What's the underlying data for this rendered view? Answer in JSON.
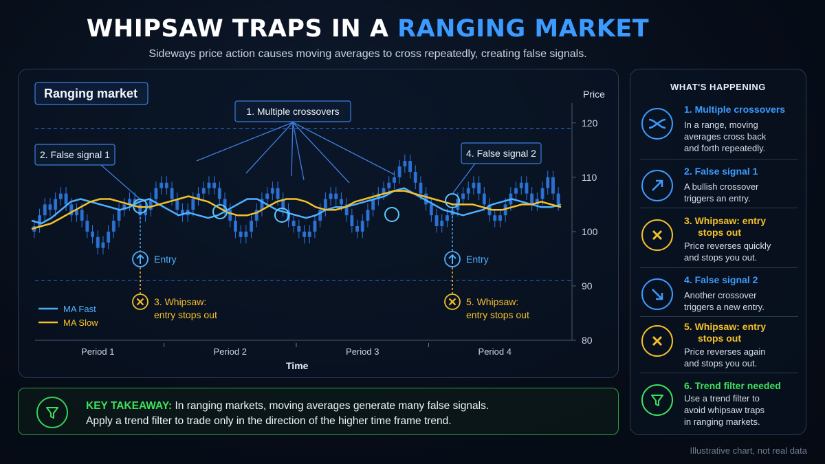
{
  "header": {
    "title_part1": "WHIPSAW TRAPS IN A ",
    "title_part2": "RANGING MARKET",
    "subtitle": "Sideways price action causes moving averages to cross repeatedly, creating false signals."
  },
  "colors": {
    "accent": "#3d9bff",
    "ma_fast": "#4fb0ff",
    "ma_slow": "#f5c12a",
    "candle": "#2e78e0",
    "whipsaw": "#f5c12a",
    "takeaway": "#3ee05d",
    "range_line": "#2d5fc4"
  },
  "chart_data": {
    "type": "line",
    "title": "Ranging market",
    "xlabel": "Time",
    "ylabel": "Price",
    "ylim": [
      80,
      122
    ],
    "yticks": [
      80,
      90,
      100,
      110,
      120
    ],
    "range_lines": [
      119,
      91
    ],
    "periods": [
      "Period 1",
      "Period 2",
      "Period 3",
      "Period 4"
    ],
    "series": [
      {
        "name": "MA Fast",
        "color": "#4fb0ff",
        "values": [
          102,
          101.5,
          102.5,
          104,
          105.5,
          106,
          105.5,
          105,
          104.5,
          104,
          104.5,
          105.5,
          106,
          105,
          104,
          103,
          103.5,
          103,
          102.5,
          103,
          104,
          105,
          106,
          106,
          105,
          104,
          103.5,
          103,
          102.5,
          103,
          104,
          104.5,
          104.5,
          105,
          105.5,
          106,
          106.5,
          107.5,
          108,
          107,
          106,
          105,
          104,
          103.5,
          103,
          103.5,
          104,
          105,
          105.5,
          106,
          105.5,
          105,
          104.5,
          104.5,
          105
        ]
      },
      {
        "name": "MA Slow",
        "color": "#f5c12a",
        "values": [
          100.5,
          101,
          101.5,
          102.5,
          103.5,
          104.5,
          105.5,
          106,
          106,
          105.5,
          105,
          104.5,
          104.5,
          105,
          105.5,
          106,
          106.5,
          106,
          105.5,
          104.5,
          103.5,
          103,
          103,
          103.5,
          104.5,
          105.5,
          106,
          106,
          105.5,
          104.5,
          104,
          104,
          104.5,
          105.5,
          106,
          106.5,
          107,
          107.5,
          107.5,
          107,
          106.5,
          106,
          105.5,
          105,
          105,
          105,
          104.5,
          104,
          104,
          104.5,
          105,
          105,
          105.5,
          105,
          104.5
        ]
      }
    ],
    "candles_close": [
      101,
      103,
      105,
      104,
      106,
      107,
      105,
      103,
      104,
      102,
      100,
      99,
      97,
      98,
      100,
      102,
      104,
      105,
      106,
      105,
      103,
      104,
      106,
      108,
      109,
      108,
      106,
      104,
      103,
      104,
      106,
      107,
      108,
      109,
      108,
      106,
      104,
      102,
      100,
      99,
      100,
      102,
      104,
      106,
      107,
      108,
      106,
      104,
      102,
      101,
      100,
      99,
      100,
      102,
      104,
      106,
      107,
      106,
      105,
      103,
      101,
      100,
      102,
      104,
      106,
      107,
      108,
      109,
      110,
      112,
      113,
      111,
      109,
      107,
      105,
      103,
      101,
      102,
      103,
      104,
      106,
      107,
      108,
      109,
      107,
      105,
      103,
      102,
      103,
      105,
      107,
      108,
      109,
      107,
      105,
      106,
      108,
      110,
      107,
      105
    ],
    "crossovers": [
      {
        "label": "2. False signal 1",
        "entry_label": "Entry",
        "whipsaw_label_1": "3. Whipsaw:",
        "whipsaw_label_2": "entry stops out"
      },
      {
        "label": "4. False signal 2",
        "entry_label": "Entry",
        "whipsaw_label_1": "5. Whipsaw:",
        "whipsaw_label_2": "entry stops out"
      }
    ],
    "annotation": "1. Multiple crossovers"
  },
  "side_panel": {
    "title": "WHAT'S HAPPENING",
    "items": [
      {
        "head": "1.  Multiple crossovers",
        "desc": [
          "In a range, moving",
          "averages cross back",
          "and forth repeatedly."
        ],
        "icon": "crossover-icon",
        "color": "#3d9bff"
      },
      {
        "head": "2.  False signal 1",
        "desc": [
          "A bullish crossover",
          "triggers an entry."
        ],
        "icon": "arrow-up-right-icon",
        "color": "#3d9bff"
      },
      {
        "head": "3.  Whipsaw: entry",
        "head2": "stops out",
        "desc": [
          "Price reverses quickly",
          "and stops you out."
        ],
        "icon": "x-icon",
        "color": "#f5c12a"
      },
      {
        "head": "4.  False signal 2",
        "desc": [
          "Another crossover",
          "triggers a new entry."
        ],
        "icon": "arrow-down-right-icon",
        "color": "#3d9bff"
      },
      {
        "head": "5.  Whipsaw: entry",
        "head2": "stops out",
        "desc": [
          "Price reverses again",
          "and stops you out."
        ],
        "icon": "x-icon",
        "color": "#f5c12a"
      },
      {
        "head": "6.  Trend filter needed",
        "desc": [
          "Use a trend filter to",
          "avoid whipsaw traps",
          "in ranging markets."
        ],
        "icon": "filter-icon",
        "color": "#3ee05d"
      }
    ]
  },
  "takeaway": {
    "key": "KEY TAKEAWAY:",
    "line1": " In ranging markets, moving averages generate many false signals.",
    "line2": "Apply a trend filter to trade only in the direction of the higher time frame trend."
  },
  "footnote": "Illustrative chart, not real data"
}
